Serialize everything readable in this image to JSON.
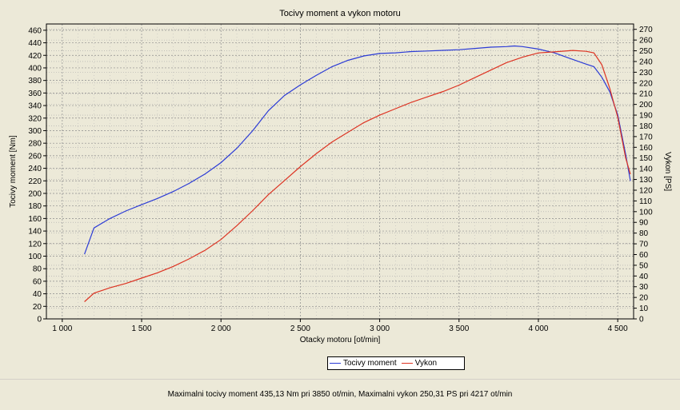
{
  "chart_data": {
    "type": "line",
    "title": "Tocivy moment a vykon motoru",
    "xlabel": "Otacky motoru [ot/min]",
    "ylabel_left": "Tocivy moment [Nm]",
    "ylabel_right": "Vykon [PS]",
    "xlim": [
      900,
      4600
    ],
    "ylim_left": [
      0,
      470
    ],
    "ylim_right": [
      0,
      275
    ],
    "x_ticks": [
      1000,
      1500,
      2000,
      2500,
      3000,
      3500,
      4000,
      4500
    ],
    "x_tick_labels": [
      "1 000",
      "1 500",
      "2 000",
      "2 500",
      "3 000",
      "3 500",
      "4 000",
      "4 500"
    ],
    "y_left_ticks": [
      0,
      20,
      40,
      60,
      80,
      100,
      120,
      140,
      160,
      180,
      200,
      220,
      240,
      260,
      280,
      300,
      320,
      340,
      360,
      380,
      400,
      420,
      440,
      460
    ],
    "y_right_ticks": [
      0,
      10,
      20,
      30,
      40,
      50,
      60,
      70,
      80,
      90,
      100,
      110,
      120,
      130,
      140,
      150,
      160,
      170,
      180,
      190,
      200,
      210,
      220,
      230,
      240,
      250,
      260,
      270
    ],
    "grid": true,
    "legend_position": "bottom-center",
    "series": [
      {
        "name": "Tocivy moment",
        "axis": "left",
        "color": "#2b3bd6",
        "x": [
          1140,
          1200,
          1300,
          1400,
          1500,
          1600,
          1700,
          1800,
          1900,
          2000,
          2100,
          2200,
          2300,
          2400,
          2500,
          2600,
          2700,
          2800,
          2900,
          3000,
          3100,
          3200,
          3300,
          3400,
          3500,
          3600,
          3700,
          3800,
          3850,
          3900,
          4000,
          4100,
          4200,
          4300,
          4350,
          4400,
          4450,
          4500,
          4550,
          4580
        ],
        "y": [
          103,
          145,
          160,
          172,
          182,
          192,
          203,
          216,
          231,
          249,
          272,
          300,
          332,
          356,
          373,
          388,
          402,
          412,
          419,
          423,
          424,
          426,
          427,
          428,
          429,
          431,
          433,
          434,
          435,
          434,
          430,
          424,
          415,
          406,
          402,
          385,
          362,
          325,
          262,
          220
        ]
      },
      {
        "name": "Vykon",
        "axis": "right",
        "color": "#dd3322",
        "x": [
          1140,
          1200,
          1300,
          1400,
          1500,
          1600,
          1700,
          1800,
          1900,
          2000,
          2100,
          2200,
          2300,
          2400,
          2500,
          2600,
          2700,
          2800,
          2900,
          3000,
          3100,
          3200,
          3300,
          3400,
          3500,
          3600,
          3700,
          3800,
          3900,
          4000,
          4100,
          4217,
          4300,
          4350,
          4400,
          4450,
          4500,
          4550,
          4580
        ],
        "y": [
          16,
          24,
          29,
          33,
          38,
          43,
          49,
          56,
          64,
          74,
          87,
          101,
          116,
          129,
          142,
          154,
          165,
          174,
          183,
          190,
          196,
          202,
          207,
          212,
          218,
          225,
          232,
          239,
          244,
          248,
          249,
          250.31,
          249.5,
          248,
          237,
          215,
          188,
          150,
          135
        ]
      }
    ]
  },
  "legend": {
    "items": [
      {
        "label": "Tocivy moment",
        "color": "#2b3bd6"
      },
      {
        "label": "Vykon",
        "color": "#dd3322"
      }
    ]
  },
  "footer": {
    "text": "Maximalni tocivy moment 435,13 Nm pri 3850 ot/min,  Maximalni vykon 250,31 PS pri 4217 ot/min"
  }
}
